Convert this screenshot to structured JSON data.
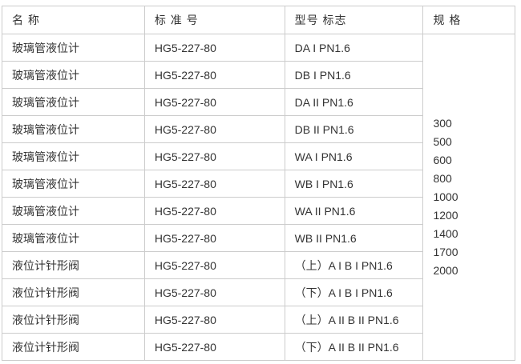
{
  "colors": {
    "border": "#cccccc",
    "text": "#333333",
    "background": "#ffffff"
  },
  "table": {
    "headers": [
      "名 称",
      "标 准 号",
      "型号 标志",
      "规 格"
    ],
    "rows": [
      {
        "name": "玻璃管液位计",
        "standard": "HG5-227-80",
        "model": "DA I PN1.6"
      },
      {
        "name": "玻璃管液位计",
        "standard": "HG5-227-80",
        "model": "DB I PN1.6"
      },
      {
        "name": "玻璃管液位计",
        "standard": "HG5-227-80",
        "model": "DA II PN1.6"
      },
      {
        "name": "玻璃管液位计",
        "standard": "HG5-227-80",
        "model": "DB II PN1.6"
      },
      {
        "name": "玻璃管液位计",
        "standard": "HG5-227-80",
        "model": "WA I PN1.6"
      },
      {
        "name": "玻璃管液位计",
        "standard": "HG5-227-80",
        "model": "WB I PN1.6"
      },
      {
        "name": "玻璃管液位计",
        "standard": "HG5-227-80",
        "model": "WA II PN1.6"
      },
      {
        "name": "玻璃管液位计",
        "standard": "HG5-227-80",
        "model": "WB II PN1.6"
      },
      {
        "name": "液位计针形阀",
        "standard": "HG5-227-80",
        "model": "（上）A I B I PN1.6"
      },
      {
        "name": "液位计针形阀",
        "standard": "HG5-227-80",
        "model": "（下）A I B I PN1.6"
      },
      {
        "name": "液位计针形阀",
        "standard": "HG5-227-80",
        "model": "（上）A II B II PN1.6"
      },
      {
        "name": "液位计针形阀",
        "standard": "HG5-227-80",
        "model": "（下）A II B II PN1.6"
      }
    ],
    "specs": [
      "300",
      "500",
      "600",
      "800",
      "1000",
      "1200",
      "1400",
      "1700",
      "2000"
    ]
  }
}
